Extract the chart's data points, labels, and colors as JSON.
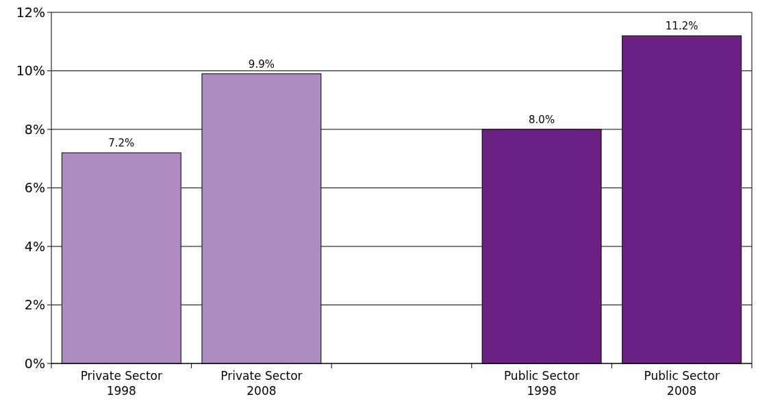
{
  "chart_data": {
    "type": "bar",
    "categories": [
      "Private Sector\n1998",
      "Private Sector\n2008",
      null,
      "Public Sector\n1998",
      "Public Sector\n2008"
    ],
    "values": [
      7.2,
      9.9,
      null,
      8.0,
      11.2
    ],
    "colors": [
      "#ae8bc1",
      "#ae8bc1",
      null,
      "#6a2183",
      "#6a2183"
    ],
    "value_labels": [
      "7.2%",
      "9.9%",
      null,
      "8.0%",
      "11.2%"
    ],
    "ylim": [
      0,
      12
    ],
    "yticks": [
      {
        "value": 0,
        "label": "0%"
      },
      {
        "value": 2,
        "label": "2%"
      },
      {
        "value": 4,
        "label": "4%"
      },
      {
        "value": 6,
        "label": "6%"
      },
      {
        "value": 8,
        "label": "8%"
      },
      {
        "value": 10,
        "label": "10%"
      },
      {
        "value": 12,
        "label": "12%"
      }
    ],
    "grid": "y"
  }
}
